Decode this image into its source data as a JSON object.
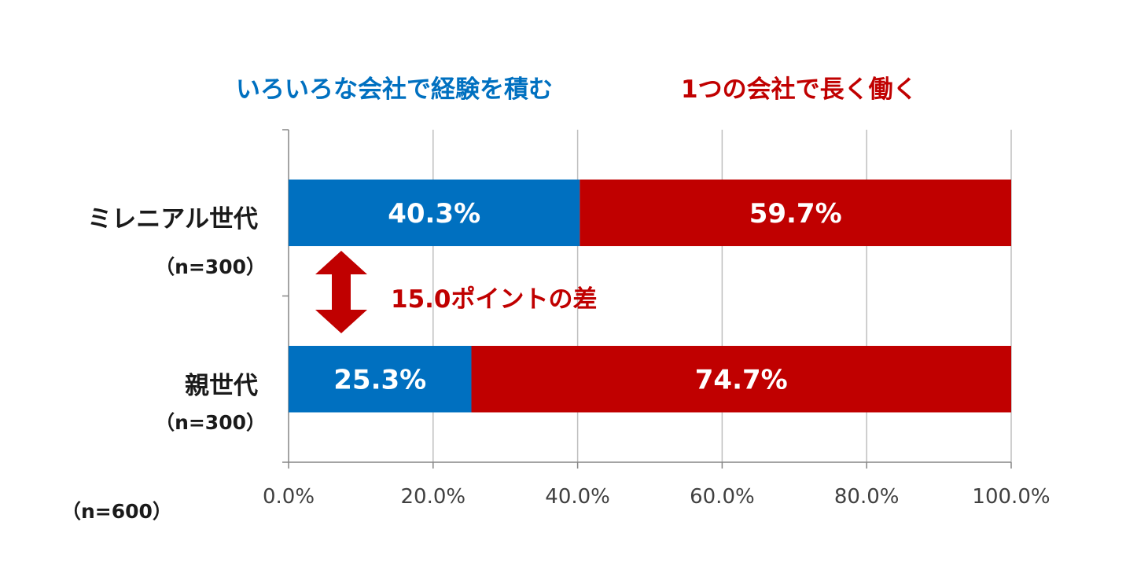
{
  "chart_data": {
    "type": "bar",
    "orientation": "horizontal",
    "stacked": true,
    "categories": [
      "ミレニアル世代",
      "親世代"
    ],
    "category_sublabels": [
      "（n=300）",
      "（n=300）"
    ],
    "series": [
      {
        "name": "いろいろな会社で経験を積む",
        "color": "#0070c0",
        "values": [
          40.3,
          25.3
        ]
      },
      {
        "name": "1つの会社で長く働く",
        "color": "#c00000",
        "values": [
          59.7,
          74.7
        ]
      }
    ],
    "data_labels": [
      [
        "40.3%",
        "25.3%"
      ],
      [
        "59.7%",
        "74.7%"
      ]
    ],
    "x_ticks": [
      "0.0%",
      "20.0%",
      "40.0%",
      "60.0%",
      "80.0%",
      "100.0%"
    ],
    "xlim": [
      0,
      100
    ],
    "grid": true,
    "legend_placement": "top",
    "annotation": {
      "text": "15.0ポイントの差",
      "color": "#c00000"
    },
    "sample_note": "（n=600）"
  }
}
